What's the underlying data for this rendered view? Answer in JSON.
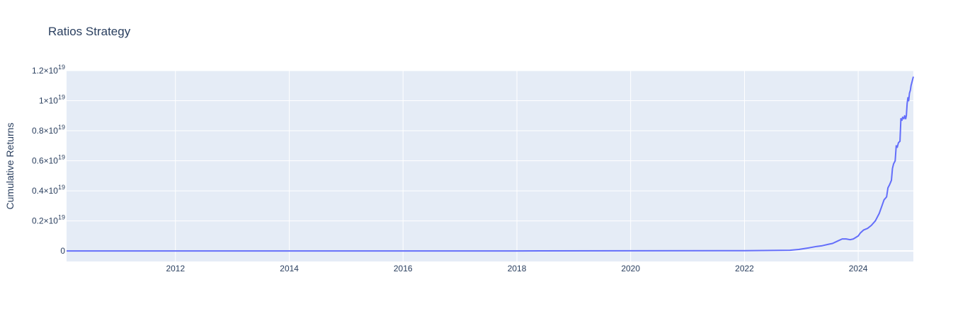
{
  "chart_data": {
    "type": "line",
    "title": "Ratios Strategy",
    "xlabel": "",
    "ylabel": "Cumulative Returns",
    "xlim": [
      "2010-02-01",
      "2024-12-20"
    ],
    "ylim": [
      -7e+17,
      1.2e+19
    ],
    "grid": true,
    "legend": "none",
    "colors": {
      "line": "#636efa",
      "plot_bg": "#e5ecf6",
      "grid": "#ffffff",
      "text": "#2a3f5f"
    },
    "x_ticks": [
      {
        "value": "2012-01-01",
        "label": "2012"
      },
      {
        "value": "2014-01-01",
        "label": "2014"
      },
      {
        "value": "2016-01-01",
        "label": "2016"
      },
      {
        "value": "2018-01-01",
        "label": "2018"
      },
      {
        "value": "2020-01-01",
        "label": "2020"
      },
      {
        "value": "2022-01-01",
        "label": "2022"
      },
      {
        "value": "2024-01-01",
        "label": "2024"
      }
    ],
    "y_ticks": [
      {
        "value": 0,
        "base": "0",
        "exp": ""
      },
      {
        "value": 2e+18,
        "base": "0.2×10",
        "exp": "19"
      },
      {
        "value": 4e+18,
        "base": "0.4×10",
        "exp": "19"
      },
      {
        "value": 6e+18,
        "base": "0.6×10",
        "exp": "19"
      },
      {
        "value": 8e+18,
        "base": "0.8×10",
        "exp": "19"
      },
      {
        "value": 1e+19,
        "base": "1×10",
        "exp": "19"
      },
      {
        "value": 1.2e+19,
        "base": "1.2×10",
        "exp": "19"
      }
    ],
    "series": [
      {
        "x": [
          "2010-02-01",
          "2014-01-01",
          "2018-01-01",
          "2022-01-01",
          "2022-10-20",
          "2022-12-15",
          "2023-02-15",
          "2023-04-10",
          "2023-05-15",
          "2023-06-25",
          "2023-07-20",
          "2023-08-20",
          "2023-09-20",
          "2023-10-15",
          "2023-11-10",
          "2023-12-01",
          "2024-01-01",
          "2024-01-15",
          "2024-02-05",
          "2024-03-01",
          "2024-03-25",
          "2024-04-20",
          "2024-05-15",
          "2024-06-01",
          "2024-06-15",
          "2024-07-01",
          "2024-07-10",
          "2024-07-20",
          "2024-08-01",
          "2024-08-08",
          "2024-08-15",
          "2024-08-25",
          "2024-09-01",
          "2024-09-08",
          "2024-09-15",
          "2024-09-25",
          "2024-10-01",
          "2024-10-08",
          "2024-10-12",
          "2024-10-20",
          "2024-10-25",
          "2024-11-01",
          "2024-11-05",
          "2024-11-10",
          "2024-11-15",
          "2024-11-20",
          "2024-11-25",
          "2024-12-01",
          "2024-12-05",
          "2024-12-10",
          "2024-12-15",
          "2024-12-20"
        ],
        "y": [
          0,
          0,
          0,
          2e+16,
          5e+16,
          1e+17,
          2e+17,
          3e+17,
          3.5e+17,
          4.5e+17,
          5e+17,
          6.5e+17,
          8e+17,
          8e+17,
          7.5e+17,
          8e+17,
          1e+18,
          1.2e+18,
          1.4e+18,
          1.5e+18,
          1.7e+18,
          2e+18,
          2.5e+18,
          3e+18,
          3.4e+18,
          3.6e+18,
          4.2e+18,
          4.4e+18,
          4.7e+18,
          5.5e+18,
          5.8e+18,
          6e+18,
          7e+18,
          6.9e+18,
          7.2e+18,
          7.3e+18,
          8.8e+18,
          8.7e+18,
          8.9e+18,
          8.8e+18,
          9e+18,
          8.8e+18,
          9e+18,
          9.8e+18,
          1.02e+19,
          1e+19,
          1.05e+19,
          1.07e+19,
          1.1e+19,
          1.12e+19,
          1.14e+19,
          1.16e+19
        ]
      }
    ]
  }
}
